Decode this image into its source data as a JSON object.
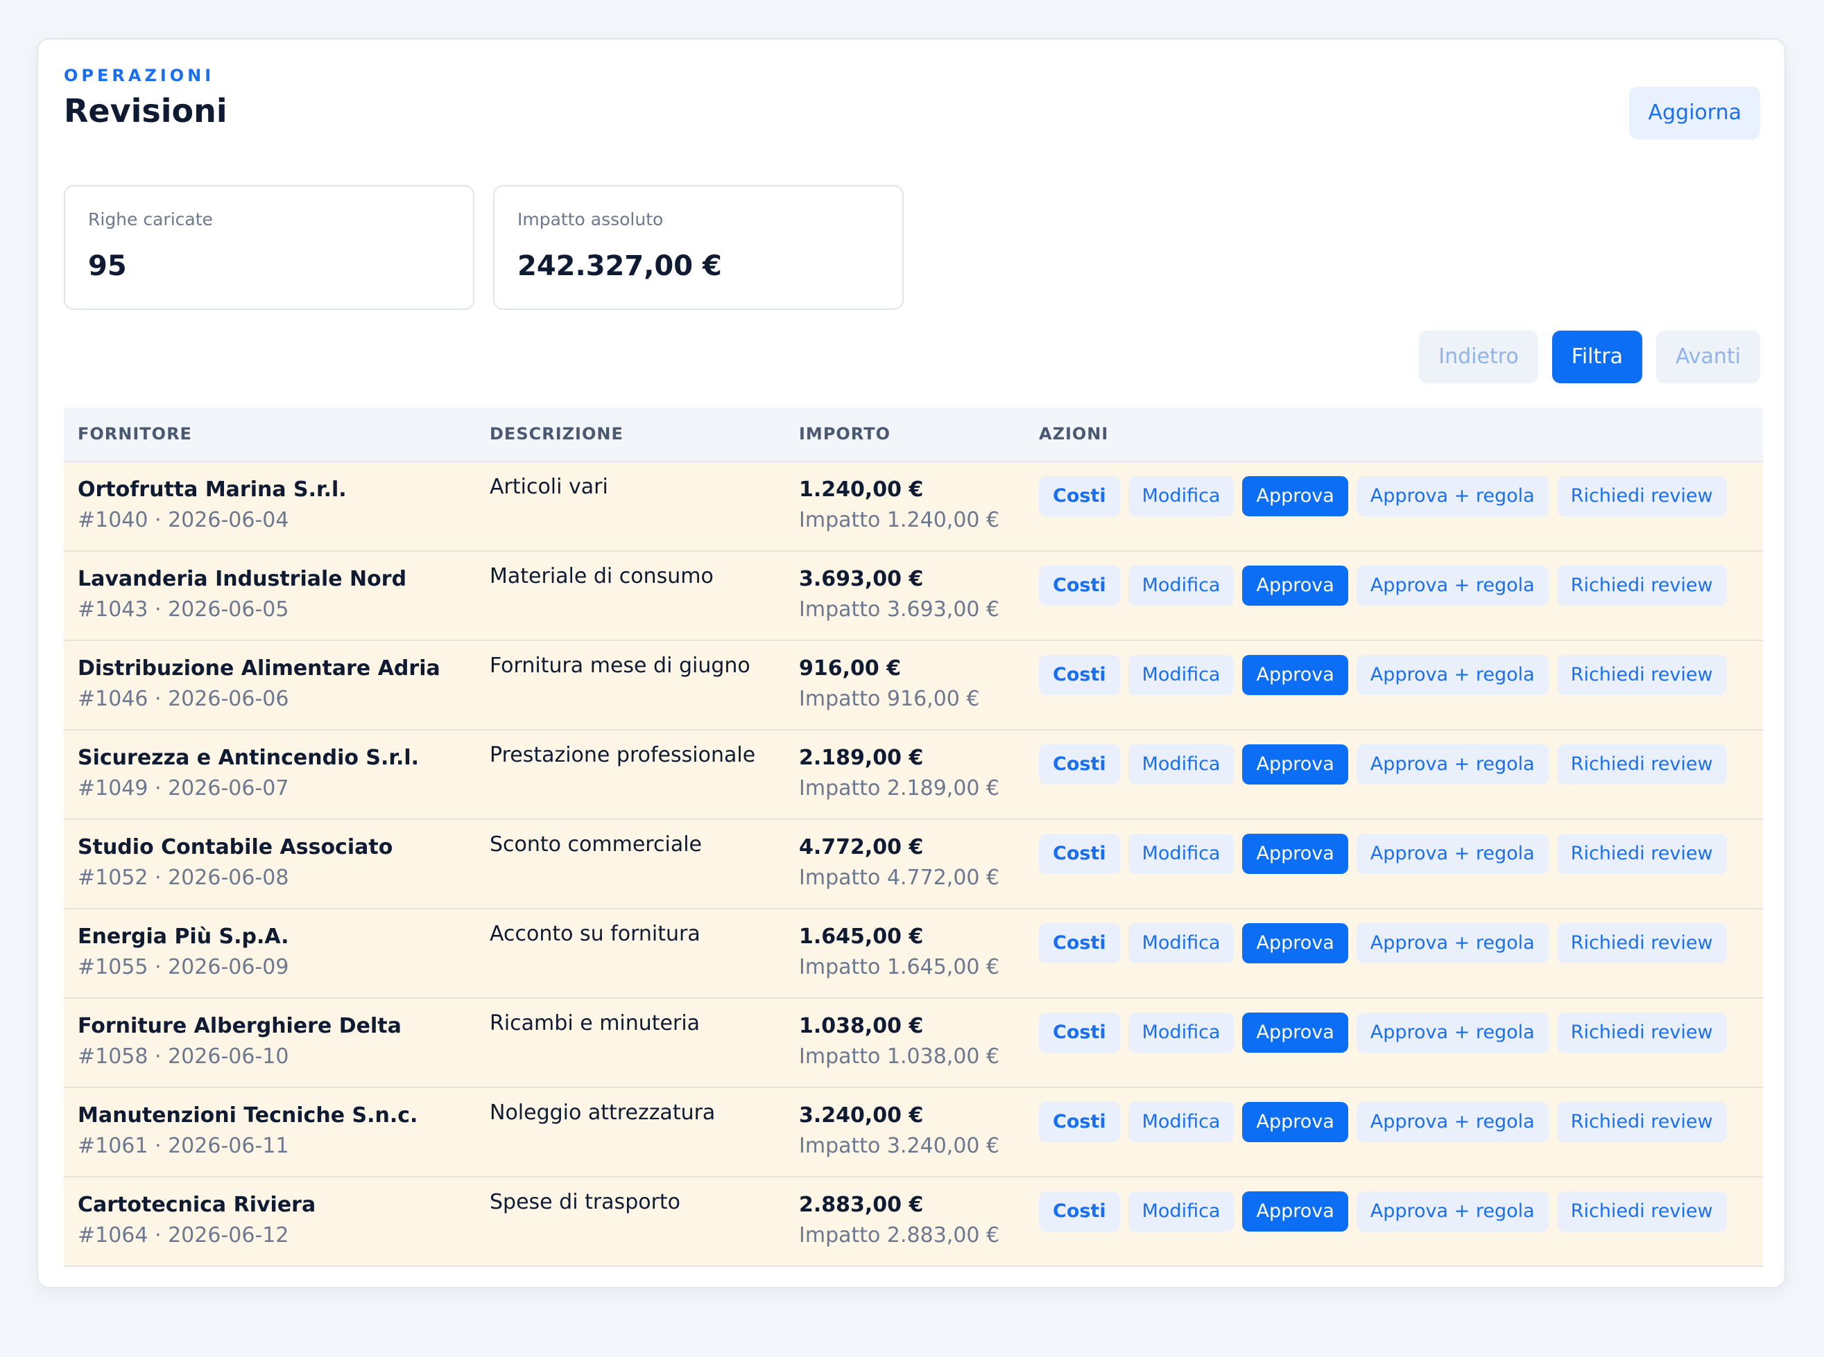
{
  "header": {
    "eyebrow": "OPERAZIONI",
    "title": "Revisioni",
    "refresh_label": "Aggiorna"
  },
  "stats": [
    {
      "label": "Righe caricate",
      "value": "95"
    },
    {
      "label": "Impatto assoluto",
      "value": "242.327,00 €"
    }
  ],
  "pager": {
    "back_label": "Indietro",
    "filter_label": "Filtra",
    "next_label": "Avanti"
  },
  "table": {
    "columns": [
      "FORNITORE",
      "DESCRIZIONE",
      "IMPORTO",
      "AZIONI"
    ],
    "actions": {
      "costs": "Costi",
      "edit": "Modifica",
      "approve": "Approva",
      "approve_adjust": "Approva + regola",
      "request_review": "Richiedi review"
    },
    "rows": [
      {
        "supplier": "Ortofrutta Marina S.r.l.",
        "meta": "#1040 · 2026-06-04",
        "description": "Articoli vari",
        "amount": "1.240,00 €",
        "impact": "Impatto 1.240,00 €"
      },
      {
        "supplier": "Lavanderia Industriale Nord",
        "meta": "#1043 · 2026-06-05",
        "description": "Materiale di consumo",
        "amount": "3.693,00 €",
        "impact": "Impatto 3.693,00 €"
      },
      {
        "supplier": "Distribuzione Alimentare Adria",
        "meta": "#1046 · 2026-06-06",
        "description": "Fornitura mese di giugno",
        "amount": "916,00 €",
        "impact": "Impatto 916,00 €"
      },
      {
        "supplier": "Sicurezza e Antincendio S.r.l.",
        "meta": "#1049 · 2026-06-07",
        "description": "Prestazione professionale",
        "amount": "2.189,00 €",
        "impact": "Impatto 2.189,00 €"
      },
      {
        "supplier": "Studio Contabile Associato",
        "meta": "#1052 · 2026-06-08",
        "description": "Sconto commerciale",
        "amount": "4.772,00 €",
        "impact": "Impatto 4.772,00 €"
      },
      {
        "supplier": "Energia Più S.p.A.",
        "meta": "#1055 · 2026-06-09",
        "description": "Acconto su fornitura",
        "amount": "1.645,00 €",
        "impact": "Impatto 1.645,00 €"
      },
      {
        "supplier": "Forniture Alberghiere Delta",
        "meta": "#1058 · 2026-06-10",
        "description": "Ricambi e minuteria",
        "amount": "1.038,00 €",
        "impact": "Impatto 1.038,00 €"
      },
      {
        "supplier": "Manutenzioni Tecniche S.n.c.",
        "meta": "#1061 · 2026-06-11",
        "description": "Noleggio attrezzatura",
        "amount": "3.240,00 €",
        "impact": "Impatto 3.240,00 €"
      },
      {
        "supplier": "Cartotecnica Riviera",
        "meta": "#1064 · 2026-06-12",
        "description": "Spese di trasporto",
        "amount": "2.883,00 €",
        "impact": "Impatto 2.883,00 €"
      }
    ]
  },
  "colors": {
    "accent": "#0c6ef5",
    "row_highlight": "#fdf6e6",
    "soft_button": "#e9f0fb"
  }
}
